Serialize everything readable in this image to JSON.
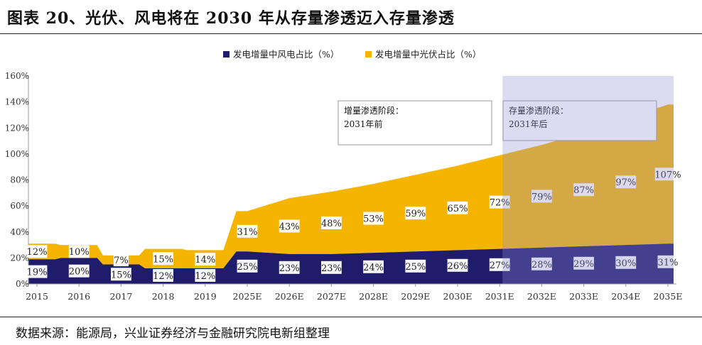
{
  "title": "图表 20、光伏、风电将在 2030 年从存量渗透迈入存量渗透",
  "source": "数据来源：能源局，兴业证券经济与金融研究院电新组整理",
  "annotations": [
    {
      "line1": "增量渗透阶段：",
      "line2": "2031年前"
    },
    {
      "line1": "存量渗透阶段：",
      "line2": "2031年后"
    }
  ],
  "colors": {
    "wind": "#1f1c6b",
    "solar": "#f5b400",
    "shade": "#8f8fd6",
    "axis": "#555555"
  },
  "chart_data": {
    "type": "area",
    "categories": [
      "2015",
      "2016",
      "2017",
      "2018",
      "2019",
      "2025E",
      "2026E",
      "2027E",
      "2028E",
      "2029E",
      "2030E",
      "2031E",
      "2032E",
      "2033E",
      "2034E",
      "2035E"
    ],
    "series": [
      {
        "name": "发电增量中风电占比（%）",
        "values": [
          19,
          20,
          15,
          12,
          12,
          25,
          23,
          23,
          24,
          25,
          26,
          27,
          28,
          29,
          30,
          31
        ]
      },
      {
        "name": "发电增量中光伏占比（%）",
        "values": [
          12,
          10,
          7,
          15,
          14,
          31,
          43,
          48,
          53,
          59,
          65,
          72,
          79,
          87,
          97,
          107
        ]
      }
    ],
    "stacked": true,
    "ylim": [
      0,
      160
    ],
    "yticks": [
      "0%",
      "20%",
      "40%",
      "60%",
      "80%",
      "100%",
      "120%",
      "140%",
      "160%"
    ],
    "legend_position": "top",
    "shaded_region": {
      "from": "2031E",
      "to": "2035E"
    }
  }
}
